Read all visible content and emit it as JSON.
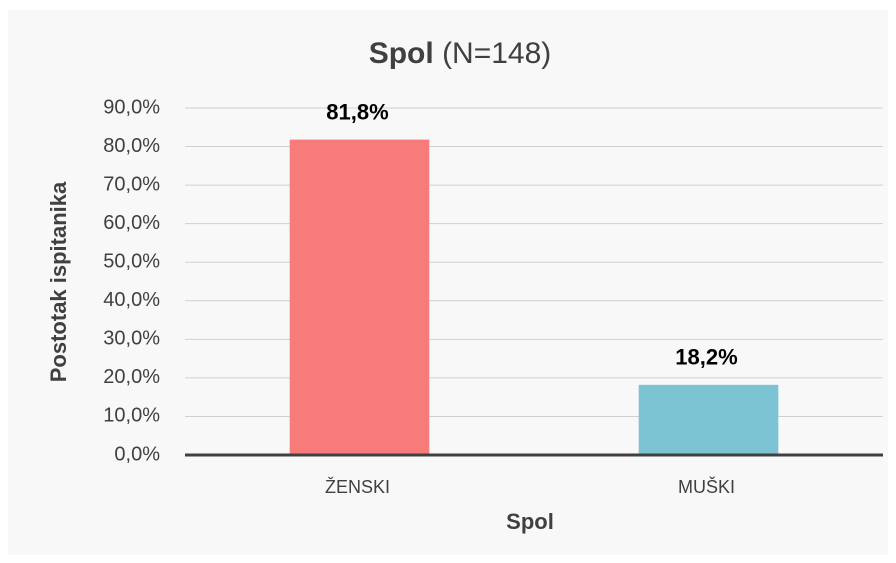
{
  "chart_data": {
    "type": "bar",
    "title": "Spol",
    "subtitle": "(N=148)",
    "x_label": "Spol",
    "y_label": "Postotak ispitanika",
    "categories": [
      "ŽENSKI",
      "MUŠKI"
    ],
    "values": [
      81.8,
      18.2
    ],
    "value_labels": [
      "81,8%",
      "18,2%"
    ],
    "colors": [
      "#f87b7b",
      "#7cc4d4"
    ],
    "ylim": [
      0,
      90
    ],
    "yticks": [
      {
        "value": 0,
        "label": "0,0%"
      },
      {
        "value": 10,
        "label": "10,0%"
      },
      {
        "value": 20,
        "label": "20,0%"
      },
      {
        "value": 30,
        "label": "30,0%"
      },
      {
        "value": 40,
        "label": "40,0%"
      },
      {
        "value": 50,
        "label": "50,0%"
      },
      {
        "value": 60,
        "label": "60,0%"
      },
      {
        "value": 70,
        "label": "70,0%"
      },
      {
        "value": 80,
        "label": "80,0%"
      },
      {
        "value": 90,
        "label": "90,0%"
      }
    ],
    "grid": true
  }
}
